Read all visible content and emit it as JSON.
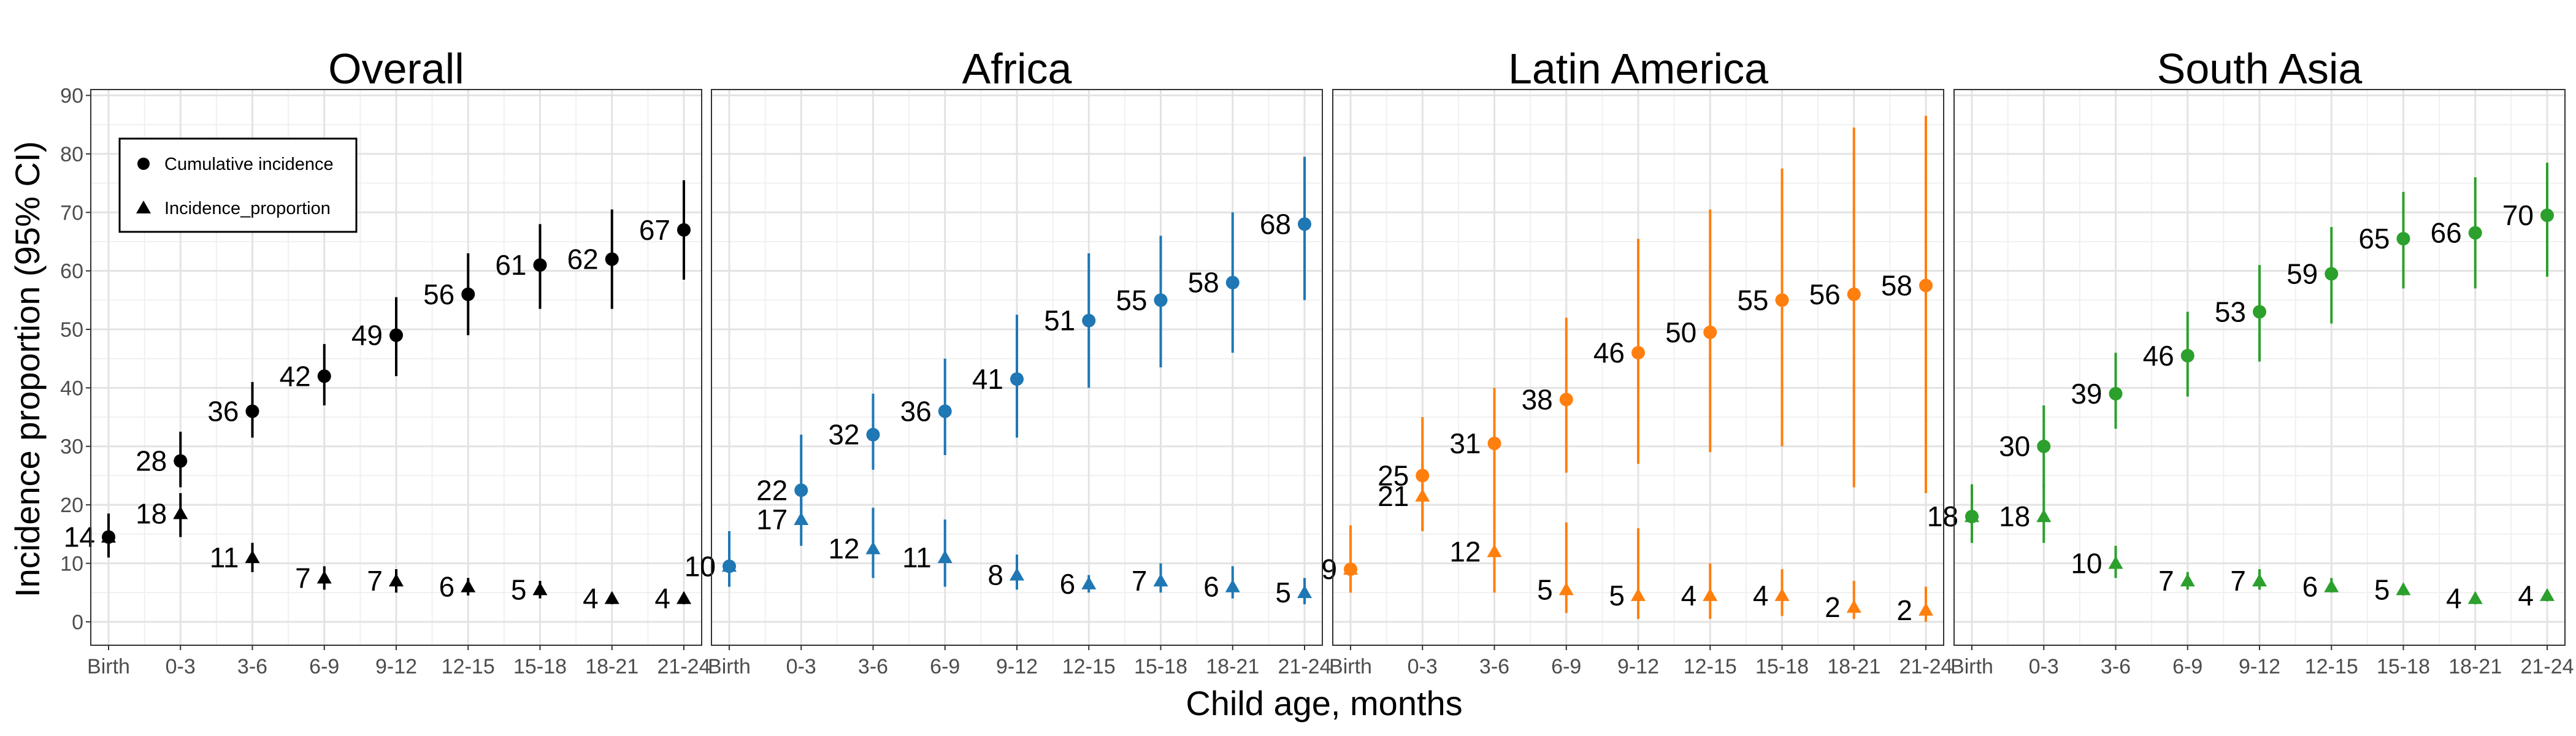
{
  "chart_data": {
    "type": "scatter",
    "title": "",
    "xlabel": "Child age, months",
    "ylabel": "Incidence proportion (95% CI)",
    "ylim": [
      -4,
      91
    ],
    "yticks": [
      0,
      10,
      20,
      30,
      40,
      50,
      60,
      70,
      80,
      90
    ],
    "categories": [
      "Birth",
      "0-3",
      "3-6",
      "6-9",
      "9-12",
      "12-15",
      "15-18",
      "18-21",
      "21-24"
    ],
    "grid": true,
    "legend": {
      "position": "top-left",
      "entries": [
        {
          "label": "Cumulative incidence",
          "marker": "circle"
        },
        {
          "label": "Incidence_proportion",
          "marker": "triangle"
        }
      ]
    },
    "panels": [
      {
        "title": "Overall",
        "color": "#000000",
        "series": [
          {
            "name": "Cumulative incidence",
            "marker": "circle",
            "values": [
              14.5,
              27.5,
              36,
              42,
              49,
              56,
              61,
              62,
              67
            ],
            "lower": [
              11,
              23,
              31.5,
              37,
              42,
              49,
              53.5,
              53.5,
              58.5
            ],
            "upper": [
              18.5,
              32.5,
              41,
              47.5,
              55.5,
              63,
              68,
              70.5,
              75.5
            ],
            "labels": [
              "14",
              "28",
              "36",
              "42",
              "49",
              "56",
              "61",
              "62",
              "67"
            ]
          },
          {
            "name": "Incidence_proportion",
            "marker": "triangle",
            "values": [
              14.5,
              18.5,
              11,
              7.5,
              7,
              6,
              5.5,
              4,
              4
            ],
            "lower": [
              11,
              14.5,
              8.5,
              5.5,
              5,
              4.5,
              4,
              3,
              3
            ],
            "upper": [
              18.5,
              22,
              13.5,
              9.5,
              9,
              7.5,
              7,
              5,
              5
            ],
            "labels": [
              "14",
              "18",
              "11",
              "7",
              "7",
              "6",
              "5",
              "4",
              "4"
            ]
          }
        ]
      },
      {
        "title": "Africa",
        "color": "#1f77b4",
        "series": [
          {
            "name": "Cumulative incidence",
            "marker": "circle",
            "values": [
              9.5,
              22.5,
              32,
              36,
              41.5,
              51.5,
              55,
              58,
              68
            ],
            "lower": [
              6,
              17,
              26,
              28.5,
              31.5,
              40,
              43.5,
              46,
              55
            ],
            "upper": [
              15.5,
              32,
              39,
              45,
              52.5,
              63,
              66,
              70,
              79.5
            ],
            "labels": [
              "10",
              "22",
              "32",
              "36",
              "41",
              "51",
              "55",
              "58",
              "68"
            ]
          },
          {
            "name": "Incidence_proportion",
            "marker": "triangle",
            "values": [
              9.5,
              17.5,
              12.5,
              11,
              8,
              6.5,
              7,
              6,
              5
            ],
            "lower": [
              6,
              13,
              7.5,
              6,
              5.5,
              5,
              5,
              4,
              3
            ],
            "upper": [
              15.5,
              22.5,
              19.5,
              17.5,
              11.5,
              8,
              10,
              9.5,
              7.5
            ],
            "labels": [
              "10",
              "17",
              "12",
              "11",
              "8",
              "6",
              "7",
              "6",
              "5"
            ]
          }
        ]
      },
      {
        "title": "Latin America",
        "color": "#ff7f0e",
        "series": [
          {
            "name": "Cumulative incidence",
            "marker": "circle",
            "values": [
              9,
              25,
              30.5,
              38,
              46,
              49.5,
              55,
              56,
              57.5
            ],
            "lower": [
              5,
              15.5,
              5,
              25.5,
              27,
              29,
              30,
              23,
              22
            ],
            "upper": [
              16.5,
              35,
              40,
              52,
              65.5,
              70.5,
              77.5,
              84.5,
              86.5
            ],
            "labels": [
              "9",
              "25",
              "31",
              "38",
              "46",
              "50",
              "55",
              "56",
              "58"
            ]
          },
          {
            "name": "Incidence_proportion",
            "marker": "triangle",
            "values": [
              9,
              21.5,
              12,
              5.5,
              4.5,
              4.5,
              4.5,
              2.5,
              2
            ],
            "lower": [
              5,
              15.5,
              5,
              1.5,
              0.5,
              0.5,
              1,
              0.5,
              0
            ],
            "upper": [
              16.5,
              27,
              19.5,
              17,
              16,
              10,
              9,
              7,
              6
            ],
            "labels": [
              "9",
              "21",
              "12",
              "5",
              "5",
              "4",
              "4",
              "2",
              "2"
            ]
          }
        ]
      },
      {
        "title": "South Asia",
        "color": "#2ca02c",
        "series": [
          {
            "name": "Cumulative incidence",
            "marker": "circle",
            "values": [
              18,
              30,
              39,
              45.5,
              53,
              59.5,
              65.5,
              66.5,
              69.5
            ],
            "lower": [
              13.5,
              23,
              33,
              38.5,
              44.5,
              51,
              57,
              57,
              59
            ],
            "upper": [
              23.5,
              37,
              46,
              53,
              61,
              67.5,
              73.5,
              76,
              78.5
            ],
            "labels": [
              "18",
              "30",
              "39",
              "46",
              "53",
              "59",
              "65",
              "66",
              "70"
            ]
          },
          {
            "name": "Incidence_proportion",
            "marker": "triangle",
            "values": [
              18,
              18,
              10,
              7,
              7,
              6,
              5.5,
              4,
              4.5
            ],
            "lower": [
              13.5,
              13.5,
              7.5,
              5.5,
              5.5,
              5,
              4.5,
              3,
              3.5
            ],
            "upper": [
              23.5,
              23.5,
              13,
              8.5,
              9,
              7.5,
              6.5,
              5,
              5.5
            ],
            "labels": [
              "18",
              "18",
              "10",
              "7",
              "7",
              "6",
              "5",
              "4",
              "4"
            ]
          }
        ]
      }
    ]
  }
}
